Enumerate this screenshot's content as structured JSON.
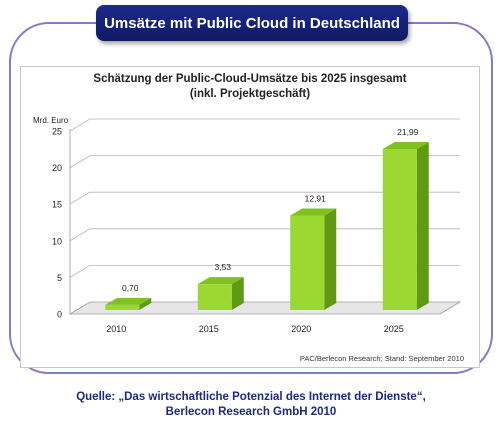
{
  "banner": {
    "title": "Umsätze mit Public Cloud in Deutschland"
  },
  "chart_data": {
    "type": "bar",
    "title": "Schätzung der Public-Cloud-Umsätze bis 2025 insgesamt",
    "subtitle": "(inkl. Projektgeschäft)",
    "ylabel": "Mrd. Euro",
    "xlabel": "",
    "categories": [
      "2010",
      "2015",
      "2020",
      "2025"
    ],
    "values": [
      0.7,
      3.53,
      12.91,
      21.99
    ],
    "value_labels": [
      "0,70",
      "3,53",
      "12,91",
      "21,99"
    ],
    "ylim": [
      0,
      25
    ],
    "yticks": [
      0,
      5,
      10,
      15,
      20,
      25
    ],
    "grid": true,
    "style": "3d",
    "bar_color": "#9bd832",
    "bar_side_color": "#5f9a12",
    "bar_top_color": "#7fc11e"
  },
  "source": "PAC/Berlecon Research; Stand: September 2010",
  "caption": {
    "line1": "Quelle: „Das wirtschaftliche Potenzial des Internet der Dienste“,",
    "line2": "Berlecon Research GmbH 2010"
  }
}
